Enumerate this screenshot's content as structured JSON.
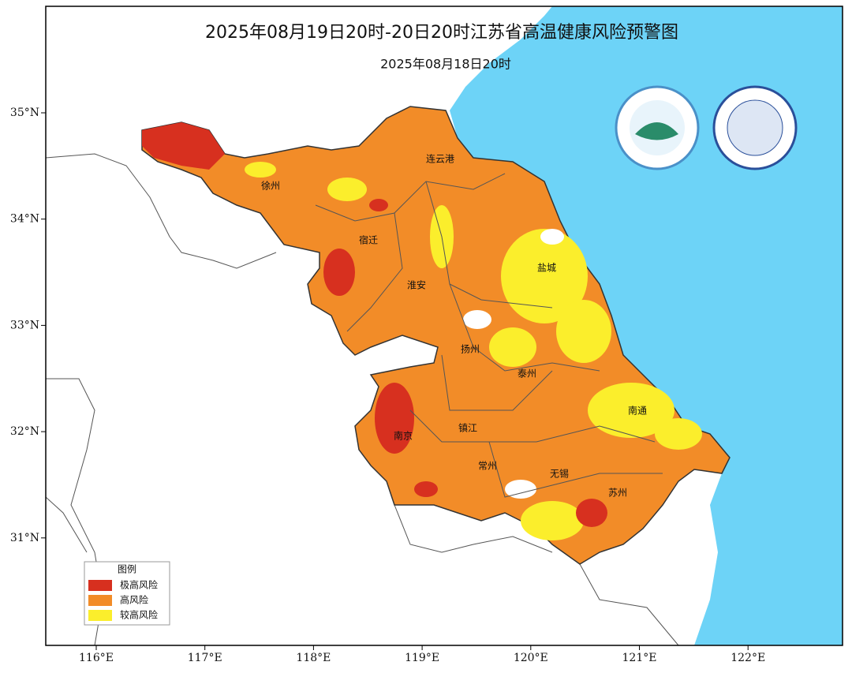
{
  "header": {
    "title": "2025年08月19日20时-20日20时江苏省高温健康风险预警图",
    "issued": "2025年08月18日20时"
  },
  "axes": {
    "latitude": [
      "35°N",
      "34°N",
      "33°N",
      "32°N",
      "31°N"
    ],
    "longitude": [
      "116°E",
      "117°E",
      "118°E",
      "119°E",
      "120°E",
      "121°E",
      "122°E"
    ]
  },
  "cities": [
    "连云港",
    "徐州",
    "宿迁",
    "淮安",
    "盐城",
    "扬州",
    "泰州",
    "南通",
    "南京",
    "镇江",
    "常州",
    "无锡",
    "苏州"
  ],
  "legend": {
    "title": "图例",
    "items": [
      "极高风险",
      "高风险",
      "较高风险"
    ]
  }
}
